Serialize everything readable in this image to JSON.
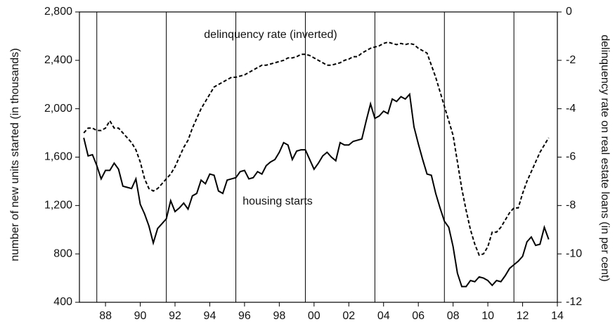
{
  "chart_data": {
    "type": "line",
    "ylabel": "number of new units started (in thousands)",
    "y2label": "delinquency rate on real estate loans (in per cent)",
    "annotations": [
      "delinquency rate (inverted)",
      "housing starts"
    ],
    "xlim": [
      1987,
      2014.5
    ],
    "xticks": [
      {
        "value": 1988.5,
        "label": "88"
      },
      {
        "value": 1990.5,
        "label": "90"
      },
      {
        "value": 1992.5,
        "label": "92"
      },
      {
        "value": 1994.5,
        "label": "94"
      },
      {
        "value": 1996.5,
        "label": "96"
      },
      {
        "value": 1998.5,
        "label": "98"
      },
      {
        "value": 2000.5,
        "label": "00"
      },
      {
        "value": 2002.5,
        "label": "02"
      },
      {
        "value": 2004.5,
        "label": "04"
      },
      {
        "value": 2006.5,
        "label": "06"
      },
      {
        "value": 2008.5,
        "label": "08"
      },
      {
        "value": 2010.5,
        "label": "10"
      },
      {
        "value": 2012.5,
        "label": "12"
      },
      {
        "value": 2014.5,
        "label": "14"
      }
    ],
    "vlines": [
      1988,
      1992,
      1996,
      2000,
      2004,
      2008,
      2012
    ],
    "ylim": [
      400,
      2800
    ],
    "yticks": [
      400,
      800,
      {
        "value": 1200,
        "label": "1,200"
      },
      {
        "value": 1600,
        "label": "1,600"
      },
      {
        "value": 2000,
        "label": "2,000"
      },
      {
        "value": 2400,
        "label": "2,400"
      },
      {
        "value": 2800,
        "label": "2,800"
      }
    ],
    "y2lim": [
      -12,
      0
    ],
    "y2ticks": [
      -12,
      -10,
      -8,
      -6,
      -4,
      -2,
      0
    ],
    "x": [
      1987.25,
      1987.5,
      1987.75,
      1988,
      1988.25,
      1988.5,
      1988.75,
      1989,
      1989.25,
      1989.5,
      1989.75,
      1990,
      1990.25,
      1990.5,
      1990.75,
      1991,
      1991.25,
      1991.5,
      1991.75,
      1992,
      1992.25,
      1992.5,
      1992.75,
      1993,
      1993.25,
      1993.5,
      1993.75,
      1994,
      1994.25,
      1994.5,
      1994.75,
      1995,
      1995.25,
      1995.5,
      1995.75,
      1996,
      1996.25,
      1996.5,
      1996.75,
      1997,
      1997.25,
      1997.5,
      1997.75,
      1998,
      1998.25,
      1998.5,
      1998.75,
      1999,
      1999.25,
      1999.5,
      1999.75,
      2000,
      2000.25,
      2000.5,
      2000.75,
      2001,
      2001.25,
      2001.5,
      2001.75,
      2002,
      2002.25,
      2002.5,
      2002.75,
      2003,
      2003.25,
      2003.5,
      2003.75,
      2004,
      2004.25,
      2004.5,
      2004.75,
      2005,
      2005.25,
      2005.5,
      2005.75,
      2006,
      2006.25,
      2006.5,
      2006.75,
      2007,
      2007.25,
      2007.5,
      2007.75,
      2008,
      2008.25,
      2008.5,
      2008.75,
      2009,
      2009.25,
      2009.5,
      2009.75,
      2010,
      2010.25,
      2010.5,
      2010.75,
      2011,
      2011.25,
      2011.5,
      2011.75,
      2012,
      2012.25,
      2012.5,
      2012.75,
      2013,
      2013.25,
      2013.5,
      2013.75,
      2014
    ],
    "series": [
      {
        "name": "housing starts",
        "color": "#000000",
        "style": "solid",
        "axis": "y",
        "values": [
          1760,
          1610,
          1620,
          1530,
          1420,
          1490,
          1490,
          1550,
          1500,
          1360,
          1350,
          1340,
          1420,
          1210,
          1130,
          1030,
          890,
          1010,
          1050,
          1090,
          1240,
          1150,
          1180,
          1220,
          1170,
          1280,
          1300,
          1410,
          1380,
          1460,
          1450,
          1320,
          1300,
          1410,
          1420,
          1430,
          1480,
          1490,
          1420,
          1430,
          1480,
          1460,
          1530,
          1560,
          1580,
          1640,
          1720,
          1700,
          1580,
          1650,
          1660,
          1660,
          1580,
          1500,
          1550,
          1610,
          1640,
          1600,
          1570,
          1720,
          1700,
          1700,
          1730,
          1740,
          1750,
          1900,
          2040,
          1920,
          1940,
          1980,
          1960,
          2080,
          2060,
          2100,
          2080,
          2120,
          1850,
          1710,
          1580,
          1460,
          1450,
          1300,
          1180,
          1070,
          1020,
          860,
          640,
          530,
          530,
          580,
          570,
          610,
          600,
          580,
          540,
          580,
          570,
          620,
          680,
          710,
          740,
          780,
          900,
          940,
          870,
          880,
          1020,
          920
        ]
      },
      {
        "name": "delinquency rate (inverted)",
        "color": "#000000",
        "style": "dashed",
        "axis": "y2",
        "values": [
          -5.0,
          -4.8,
          -4.8,
          -4.9,
          -4.9,
          -4.8,
          -4.5,
          -4.8,
          -4.8,
          -5.0,
          -5.2,
          -5.4,
          -5.7,
          -6.2,
          -6.9,
          -7.3,
          -7.4,
          -7.3,
          -7.1,
          -6.9,
          -6.7,
          -6.4,
          -6.0,
          -5.6,
          -5.3,
          -4.8,
          -4.4,
          -4.0,
          -3.7,
          -3.4,
          -3.1,
          -3.0,
          -2.9,
          -2.8,
          -2.7,
          -2.7,
          -2.65,
          -2.6,
          -2.5,
          -2.4,
          -2.3,
          -2.2,
          -2.2,
          -2.15,
          -2.1,
          -2.05,
          -2.0,
          -1.9,
          -1.9,
          -1.85,
          -1.75,
          -1.75,
          -1.8,
          -1.9,
          -2.0,
          -2.1,
          -2.2,
          -2.2,
          -2.15,
          -2.1,
          -2.0,
          -1.95,
          -1.85,
          -1.85,
          -1.7,
          -1.6,
          -1.5,
          -1.45,
          -1.4,
          -1.3,
          -1.25,
          -1.3,
          -1.35,
          -1.3,
          -1.35,
          -1.3,
          -1.35,
          -1.5,
          -1.6,
          -1.7,
          -2.2,
          -2.7,
          -3.3,
          -3.9,
          -4.5,
          -5.1,
          -6.2,
          -7.3,
          -8.2,
          -9.0,
          -9.6,
          -10.05,
          -10.0,
          -9.7,
          -9.1,
          -9.1,
          -8.9,
          -8.6,
          -8.3,
          -8.1,
          -8.1,
          -7.5,
          -7.0,
          -6.6,
          -6.2,
          -5.8,
          -5.5,
          -5.2
        ]
      }
    ]
  }
}
